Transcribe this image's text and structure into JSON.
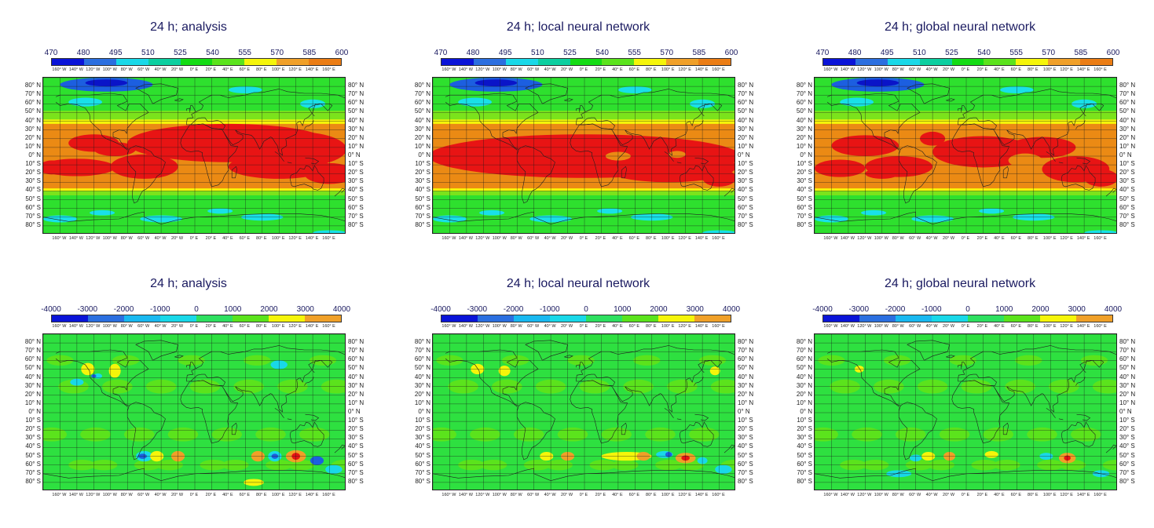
{
  "panels": [
    {
      "title": "24 h; analysis",
      "type": "field"
    },
    {
      "title": "24 h; local neural network",
      "type": "field"
    },
    {
      "title": "24 h; global neural network",
      "type": "field"
    },
    {
      "title": "24 h; analysis",
      "type": "tendency"
    },
    {
      "title": "24 h; local neural network",
      "type": "tendency"
    },
    {
      "title": "24 h; global neural network",
      "type": "tendency"
    }
  ],
  "colorbars": {
    "field": {
      "labels": [
        "470",
        "480",
        "495",
        "510",
        "525",
        "540",
        "555",
        "570",
        "585",
        "600"
      ],
      "colors": [
        "#0a14d8",
        "#2b6fe0",
        "#19d8e8",
        "#0ccfa0",
        "#14dc14",
        "#5be31c",
        "#f5f50a",
        "#f0a028",
        "#eb7d14",
        "#e81414"
      ]
    },
    "tendency": {
      "labels": [
        "-4000",
        "-3000",
        "-2000",
        "-1000",
        "0",
        "1000",
        "2000",
        "3000",
        "4000"
      ],
      "colors": [
        "#0a14d8",
        "#2b6fe0",
        "#19b8f0",
        "#19d8e8",
        "#2ee060",
        "#5be31c",
        "#f5f50a",
        "#f0a028",
        "#e81414"
      ]
    }
  },
  "lon_labels": [
    "160° W",
    "140° W",
    "120° W",
    "100° W",
    "80° W",
    "60° W",
    "40° W",
    "20° W",
    "0° E",
    "20° E",
    "40° E",
    "60° E",
    "80° E",
    "100° E",
    "120° E",
    "140° E",
    "160° E"
  ],
  "lat_labels": [
    "80° N",
    "70° N",
    "60° N",
    "50° N",
    "40° N",
    "30° N",
    "20° N",
    "10° N",
    "0° N",
    "10° S",
    "20° S",
    "30° S",
    "40° S",
    "50° S",
    "60° S",
    "70° S",
    "80° S"
  ],
  "field_colors": {
    "orange": "#eb8a14",
    "red": "#e81414",
    "yellow": "#f5f50a",
    "lime": "#7be31c",
    "green": "#2ee02e",
    "cyan": "#19e0e8",
    "blue": "#1c5fe0",
    "darkblue": "#0a14c8"
  },
  "tend_colors": {
    "bg": "#2ee040",
    "lime": "#5be31c",
    "yellow": "#f5f50a",
    "orange": "#f0a028",
    "red": "#e81414",
    "cyan": "#19d8e8",
    "blue": "#1c5fe0",
    "darkblue": "#0a14c8"
  }
}
